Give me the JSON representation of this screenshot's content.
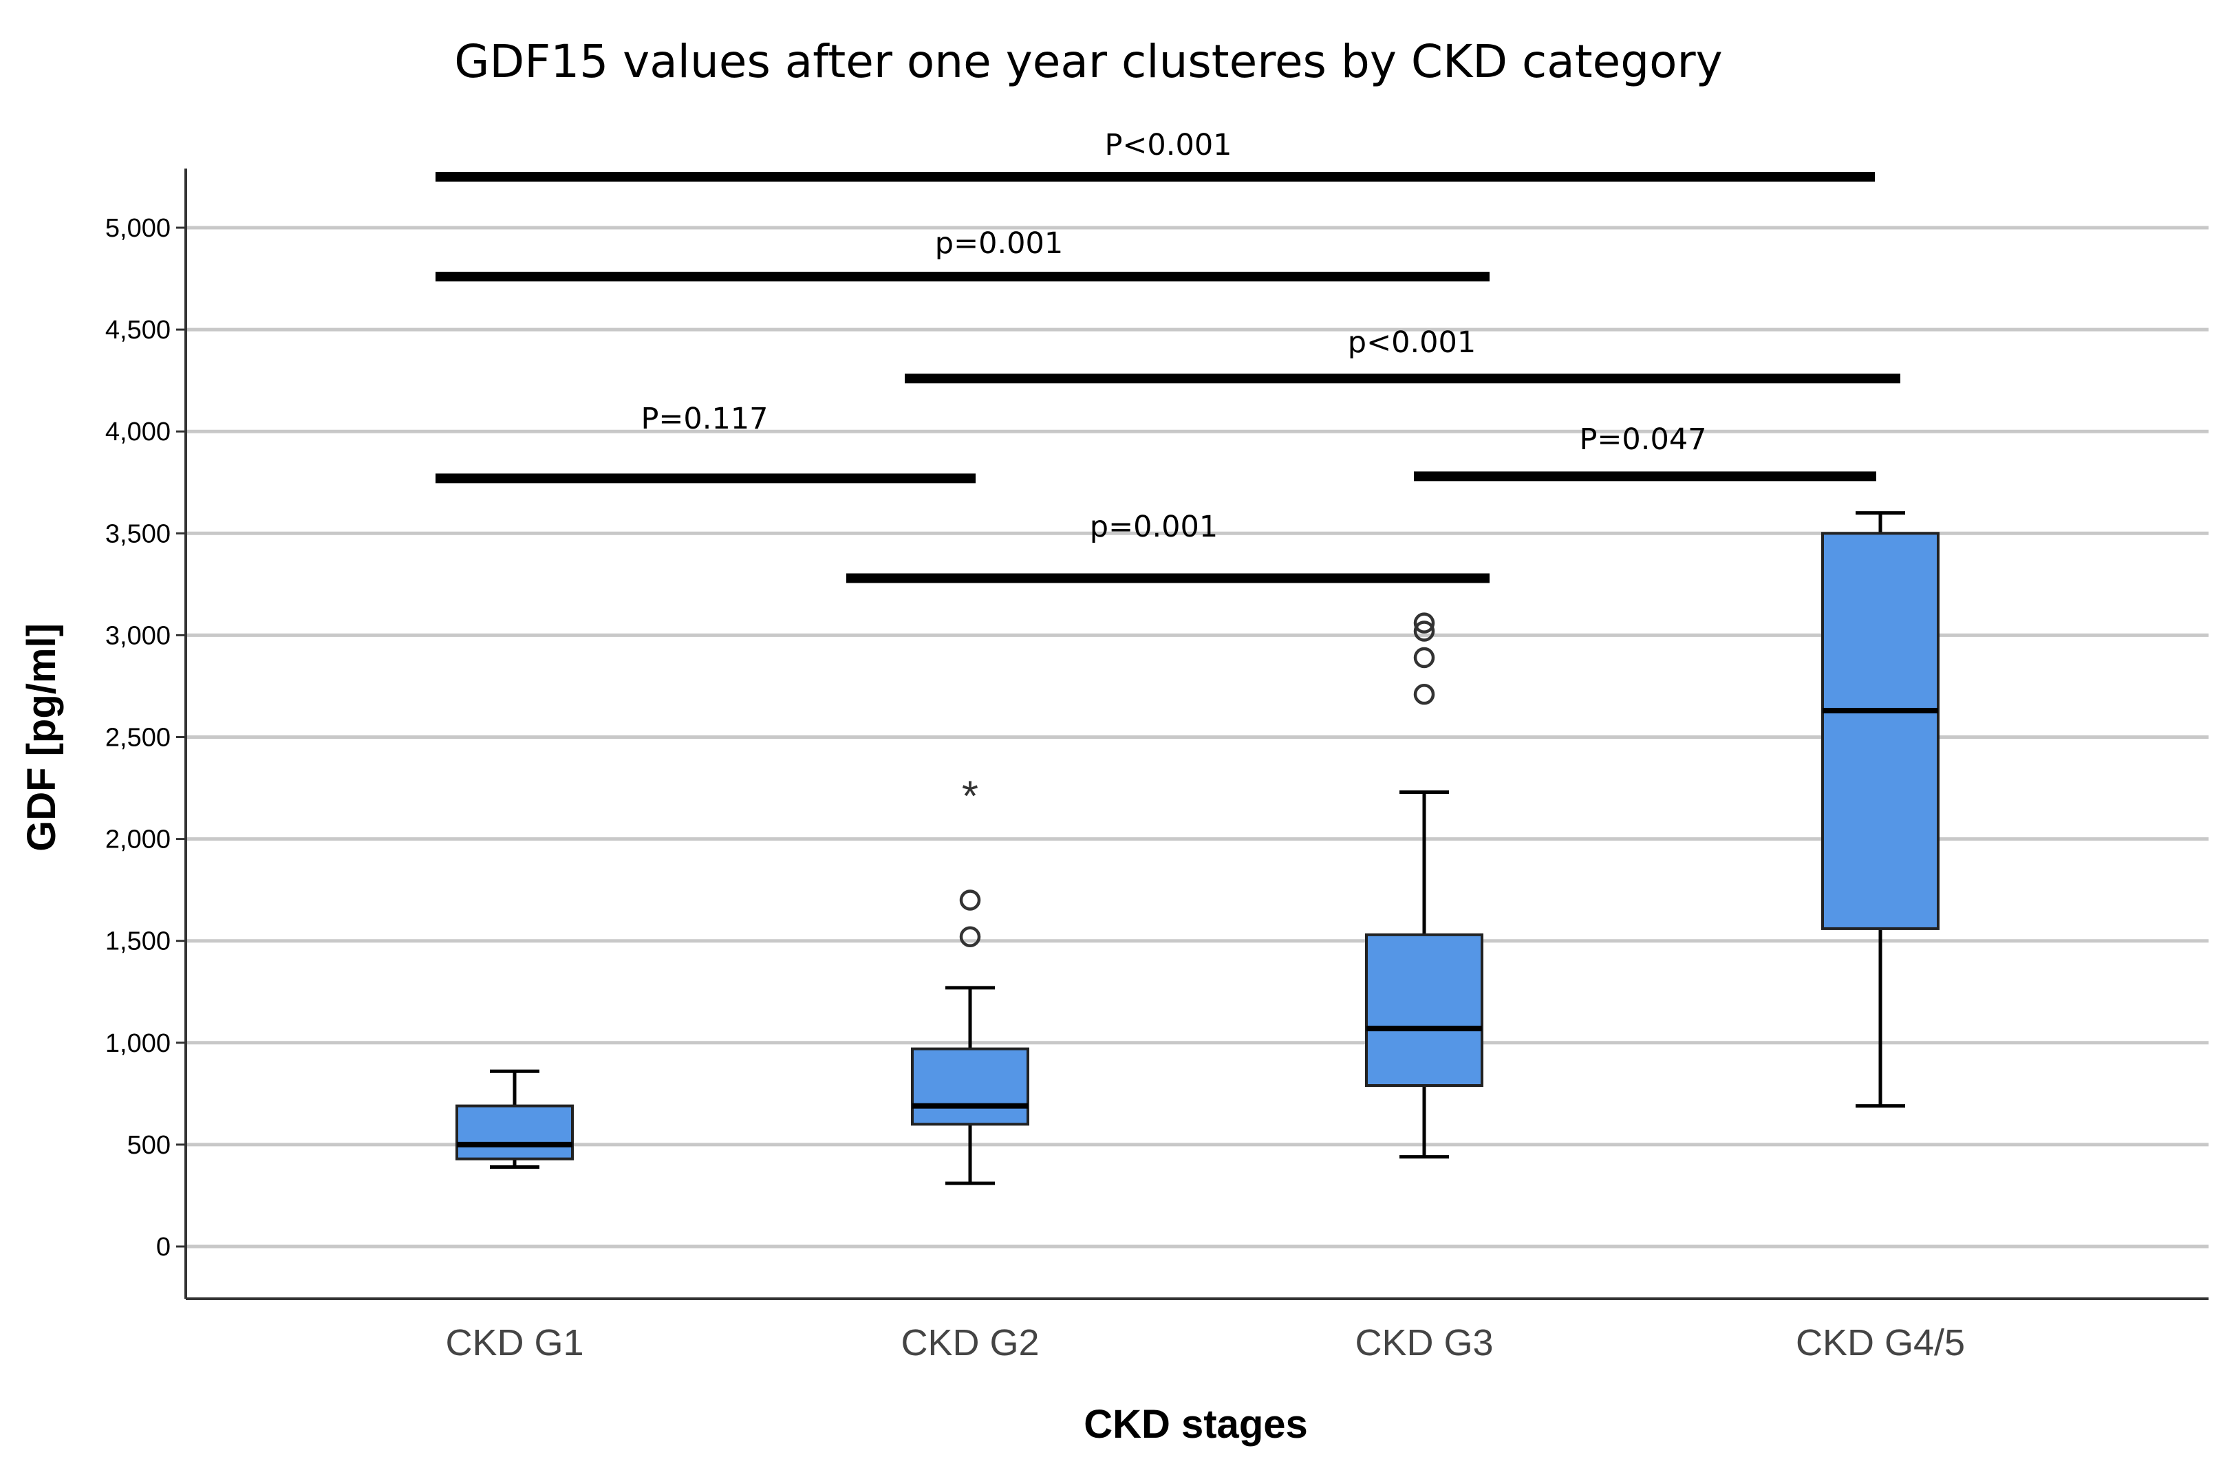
{
  "chart_data": {
    "type": "boxplot",
    "title": "GDF15 values after one year clusteres by CKD category",
    "xlabel": "CKD stages",
    "ylabel": "GDF [pg/ml]",
    "ylim": [
      -250,
      5300
    ],
    "yticks": [
      0,
      500,
      1000,
      1500,
      2000,
      2500,
      3000,
      3500,
      4000,
      4500,
      5000
    ],
    "ytick_labels": [
      "0",
      "500",
      "1,000",
      "1,500",
      "2,000",
      "2,500",
      "3,000",
      "3,500",
      "4,000",
      "4,500",
      "5,000"
    ],
    "grid": true,
    "box_color": "#5596e6",
    "categories": [
      "CKD G1",
      "CKD G2",
      "CKD G3",
      "CKD G4/5"
    ],
    "boxes": [
      {
        "category": "CKD G1",
        "whisker_low": 390,
        "q1": 430,
        "median": 500,
        "q3": 690,
        "whisker_high": 860,
        "outliers": [],
        "extremes": []
      },
      {
        "category": "CKD G2",
        "whisker_low": 310,
        "q1": 600,
        "median": 690,
        "q3": 970,
        "whisker_high": 1270,
        "outliers": [
          1520,
          1700
        ],
        "extremes": [
          2240
        ]
      },
      {
        "category": "CKD G3",
        "whisker_low": 440,
        "q1": 790,
        "median": 1070,
        "q3": 1530,
        "whisker_high": 2230,
        "outliers": [
          2710,
          2890,
          3020,
          3060
        ],
        "extremes": []
      },
      {
        "category": "CKD G4/5",
        "whisker_low": 690,
        "q1": 1560,
        "median": 2630,
        "q3": 3500,
        "whisker_high": 3600,
        "outliers": [],
        "extremes": []
      }
    ],
    "significance": [
      {
        "label": "P<0.001",
        "from": "CKD G1",
        "to": "CKD G4/5",
        "y": 5250
      },
      {
        "label": "p=0.001",
        "from": "CKD G1",
        "to": "CKD G3",
        "y": 4760
      },
      {
        "label": "p<0.001",
        "from": "CKD G2",
        "to": "CKD G4/5",
        "y": 4260
      },
      {
        "label": "P=0.117",
        "from": "CKD G1",
        "to": "CKD G2",
        "y": 3770
      },
      {
        "label": "P=0.047",
        "from": "CKD G3",
        "to": "CKD G4/5",
        "y": 3780
      },
      {
        "label": "p=0.001",
        "from": "CKD G2",
        "to": "CKD G3",
        "y": 3280
      }
    ]
  }
}
